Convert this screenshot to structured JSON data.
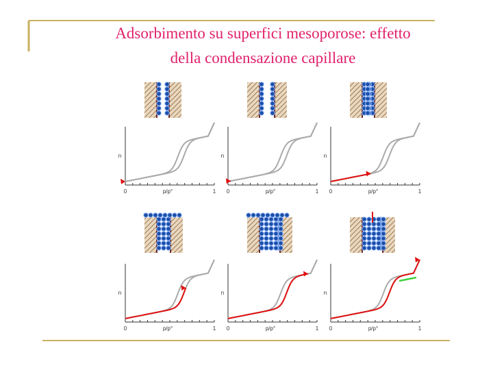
{
  "title": [
    "Adsorbimento su superfici mesoporose: effetto",
    "della condensazione capillare"
  ],
  "panels": [
    {
      "y_label": "n",
      "x_start": "0",
      "x_label": "p/p°",
      "x_end": "1"
    },
    {
      "y_label": "n",
      "x_start": "0",
      "x_label": "p/p°",
      "x_end": "1"
    },
    {
      "y_label": "n",
      "x_start": "0",
      "x_label": "p/p°",
      "x_end": "1"
    },
    {
      "y_label": "n",
      "x_start": "0",
      "x_label": "p/p°",
      "x_end": "1"
    },
    {
      "y_label": "n",
      "x_start": "0",
      "x_label": "p/p°",
      "x_end": "1"
    },
    {
      "y_label": "n",
      "x_start": "0",
      "x_label": "p/p°",
      "x_end": "1"
    }
  ]
}
